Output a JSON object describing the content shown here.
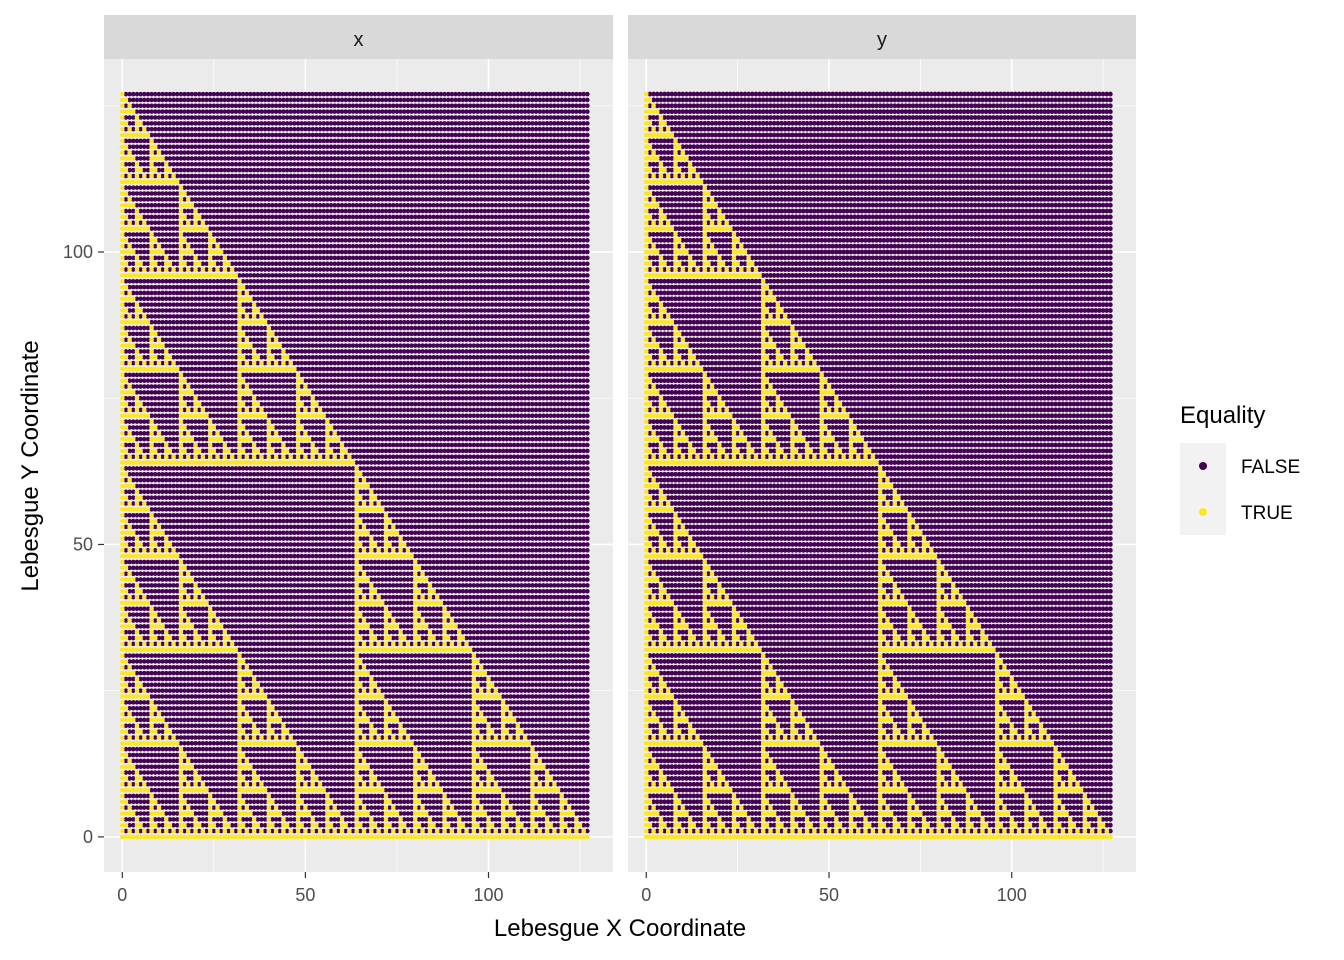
{
  "chart_data": {
    "type": "scatter",
    "facet_strip_labels": [
      "x",
      "y"
    ],
    "xlabel": "Lebesgue X Coordinate",
    "ylabel": "Lebesgue Y Coordinate",
    "x_ticks": [
      0,
      50,
      100
    ],
    "y_ticks": [
      0,
      50,
      100
    ],
    "xlim": [
      -5,
      134
    ],
    "ylim": [
      -6,
      133
    ],
    "grid_size": 128,
    "legend": {
      "title": "Equality",
      "position": "right",
      "entries": [
        {
          "label": "FALSE",
          "color": "#440154"
        },
        {
          "label": "TRUE",
          "color": "#FDE725"
        }
      ]
    },
    "colors": {
      "panel_background": "#EBEBEB",
      "strip_background": "#D9D9D9",
      "grid_line": "#FFFFFF",
      "false_color": "#440154",
      "true_color": "#FDE725"
    },
    "description_of_data": "Each point (x,y) on a 128x128 integer grid is colored by whether a bitwise relation holds; panel x shows a Sierpinski-like lower triangle, panel y a related fractal pattern."
  }
}
